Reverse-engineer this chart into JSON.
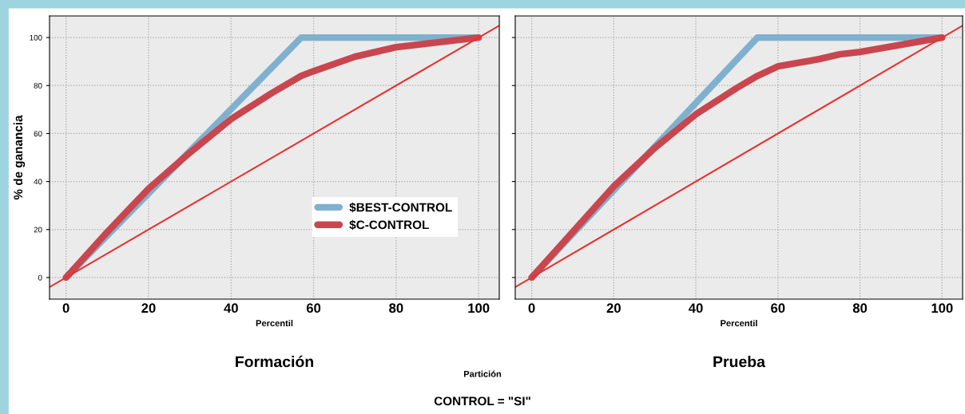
{
  "chart_data": [
    {
      "type": "line",
      "title": "Formación",
      "xlabel": "Percentil",
      "ylabel": "% de ganancia",
      "xlim": [
        -4,
        105
      ],
      "ylim": [
        -9,
        109
      ],
      "xticks": [
        0,
        20,
        40,
        60,
        80,
        100
      ],
      "yticks": [
        0,
        20,
        40,
        60,
        80,
        100
      ],
      "grid": true,
      "legend": "lower right",
      "series": [
        {
          "name": "$BEST-CONTROL",
          "color": "#7fb1cf",
          "x": [
            0,
            57,
            100
          ],
          "values": [
            0,
            100,
            100
          ]
        },
        {
          "name": "$C-CONTROL",
          "color": "#c9464f",
          "x": [
            0,
            10,
            20,
            30,
            40,
            50,
            57,
            60,
            70,
            80,
            90,
            100
          ],
          "values": [
            0,
            19,
            37,
            52,
            66,
            77,
            84,
            86,
            92,
            96,
            98,
            100
          ]
        },
        {
          "color": "#e8312f",
          "x": [
            -4,
            105
          ],
          "values": [
            -4,
            105
          ]
        }
      ],
      "annotations": [
        "Partición",
        "CONTROL = \"SI\""
      ]
    },
    {
      "type": "line",
      "title": "Prueba",
      "xlabel": "Percentil",
      "xlim": [
        -4,
        105
      ],
      "ylim": [
        -9,
        109
      ],
      "xticks": [
        0,
        20,
        40,
        60,
        80,
        100
      ],
      "yticks": [
        0,
        20,
        40,
        60,
        80,
        100
      ],
      "grid": true,
      "tick_labels": "x",
      "series": [
        {
          "color": "#7fb1cf",
          "x": [
            0,
            55,
            100
          ],
          "values": [
            0,
            100,
            100
          ]
        },
        {
          "color": "#c9464f",
          "x": [
            0,
            10,
            20,
            30,
            40,
            50,
            55,
            60,
            70,
            75,
            80,
            90,
            100
          ],
          "values": [
            0,
            19,
            38,
            54,
            68,
            79,
            84,
            88,
            91,
            93,
            94,
            97,
            100
          ]
        },
        {
          "color": "#e8312f",
          "x": [
            -4,
            105
          ],
          "values": [
            -4,
            105
          ]
        }
      ]
    }
  ]
}
